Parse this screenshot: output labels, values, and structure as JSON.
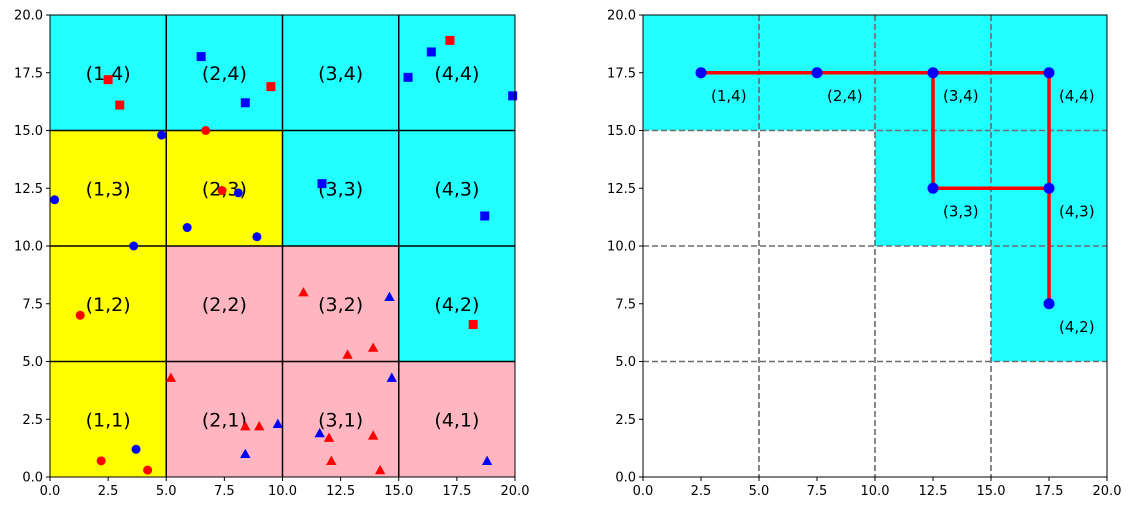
{
  "chart_data": [
    {
      "type": "scatter",
      "xlim": [
        0,
        20
      ],
      "ylim": [
        0,
        20
      ],
      "xticks": [
        "0.0",
        "2.5",
        "5.0",
        "7.5",
        "10.0",
        "12.5",
        "15.0",
        "17.5",
        "20.0"
      ],
      "yticks": [
        "0.0",
        "2.5",
        "5.0",
        "7.5",
        "10.0",
        "12.5",
        "15.0",
        "17.5",
        "20.0"
      ],
      "grid": "solid black lines every 5 units",
      "cell_size": 5,
      "cells": [
        {
          "label": "(1,1)",
          "i": 1,
          "j": 1,
          "fill": "#ffff00"
        },
        {
          "label": "(2,1)",
          "i": 2,
          "j": 1,
          "fill": "#ffb6c1"
        },
        {
          "label": "(3,1)",
          "i": 3,
          "j": 1,
          "fill": "#ffb6c1"
        },
        {
          "label": "(4,1)",
          "i": 4,
          "j": 1,
          "fill": "#ffb6c1"
        },
        {
          "label": "(1,2)",
          "i": 1,
          "j": 2,
          "fill": "#ffff00"
        },
        {
          "label": "(2,2)",
          "i": 2,
          "j": 2,
          "fill": "#ffb6c1"
        },
        {
          "label": "(3,2)",
          "i": 3,
          "j": 2,
          "fill": "#ffb6c1"
        },
        {
          "label": "(4,2)",
          "i": 4,
          "j": 2,
          "fill": "#22ffff"
        },
        {
          "label": "(1,3)",
          "i": 1,
          "j": 3,
          "fill": "#ffff00"
        },
        {
          "label": "(2,3)",
          "i": 2,
          "j": 3,
          "fill": "#ffff00"
        },
        {
          "label": "(3,3)",
          "i": 3,
          "j": 3,
          "fill": "#22ffff"
        },
        {
          "label": "(4,3)",
          "i": 4,
          "j": 3,
          "fill": "#22ffff"
        },
        {
          "label": "(1,4)",
          "i": 1,
          "j": 4,
          "fill": "#22ffff"
        },
        {
          "label": "(2,4)",
          "i": 2,
          "j": 4,
          "fill": "#22ffff"
        },
        {
          "label": "(3,4)",
          "i": 3,
          "j": 4,
          "fill": "#22ffff"
        },
        {
          "label": "(4,4)",
          "i": 4,
          "j": 4,
          "fill": "#22ffff"
        }
      ],
      "series": [
        {
          "marker": "circle",
          "color": "#ff0000",
          "points": [
            [
              2.2,
              0.7
            ],
            [
              4.2,
              0.3
            ],
            [
              1.3,
              7.0
            ],
            [
              6.7,
              15.0
            ],
            [
              7.4,
              12.4
            ]
          ]
        },
        {
          "marker": "circle",
          "color": "#0000ff",
          "points": [
            [
              3.7,
              1.2
            ],
            [
              0.2,
              12.0
            ],
            [
              3.6,
              10.0
            ],
            [
              4.8,
              14.8
            ],
            [
              5.9,
              10.8
            ],
            [
              8.1,
              12.3
            ],
            [
              8.9,
              10.4
            ]
          ]
        },
        {
          "marker": "square",
          "color": "#ff0000",
          "points": [
            [
              2.5,
              17.2
            ],
            [
              3.0,
              16.1
            ],
            [
              9.5,
              16.9
            ],
            [
              17.2,
              18.9
            ],
            [
              18.2,
              6.6
            ]
          ]
        },
        {
          "marker": "square",
          "color": "#0000ff",
          "points": [
            [
              6.5,
              18.2
            ],
            [
              8.4,
              16.2
            ],
            [
              11.7,
              12.7
            ],
            [
              15.4,
              17.3
            ],
            [
              16.4,
              18.4
            ],
            [
              18.7,
              11.3
            ],
            [
              19.9,
              16.5
            ]
          ]
        },
        {
          "marker": "triangle",
          "color": "#ff0000",
          "points": [
            [
              5.2,
              4.3
            ],
            [
              8.4,
              2.2
            ],
            [
              9.0,
              2.2
            ],
            [
              10.9,
              8.0
            ],
            [
              12.0,
              1.7
            ],
            [
              12.1,
              0.7
            ],
            [
              12.8,
              5.3
            ],
            [
              13.9,
              5.6
            ],
            [
              13.9,
              1.8
            ],
            [
              14.2,
              0.3
            ]
          ]
        },
        {
          "marker": "triangle",
          "color": "#0000ff",
          "points": [
            [
              8.4,
              1.0
            ],
            [
              9.8,
              2.3
            ],
            [
              11.6,
              1.9
            ],
            [
              14.6,
              7.8
            ],
            [
              14.7,
              4.3
            ],
            [
              18.8,
              0.7
            ]
          ]
        }
      ]
    },
    {
      "type": "line",
      "xlim": [
        0,
        20
      ],
      "ylim": [
        0,
        20
      ],
      "xticks": [
        "0.0",
        "2.5",
        "5.0",
        "7.5",
        "10.0",
        "12.5",
        "15.0",
        "17.5",
        "20.0"
      ],
      "yticks": [
        "0.0",
        "2.5",
        "5.0",
        "7.5",
        "10.0",
        "12.5",
        "15.0",
        "17.5",
        "20.0"
      ],
      "grid": "dashed gray lines every 5 units",
      "highlight_color": "#22ffff",
      "highlighted_cells": [
        [
          1,
          4
        ],
        [
          2,
          4
        ],
        [
          3,
          4
        ],
        [
          4,
          4
        ],
        [
          3,
          3
        ],
        [
          4,
          3
        ],
        [
          4,
          2
        ]
      ],
      "path_color": "#ff0000",
      "node_color": "#0000ff",
      "path": [
        [
          2.5,
          17.5
        ],
        [
          7.5,
          17.5
        ],
        [
          12.5,
          17.5
        ],
        [
          12.5,
          12.5
        ],
        [
          17.5,
          12.5
        ],
        [
          17.5,
          17.5
        ],
        [
          12.5,
          17.5
        ],
        [
          17.5,
          17.5
        ],
        [
          17.5,
          12.5
        ],
        [
          17.5,
          7.5
        ]
      ],
      "nodes": [
        {
          "label": "(1,4)",
          "x": 2.5,
          "y": 17.5
        },
        {
          "label": "(2,4)",
          "x": 7.5,
          "y": 17.5
        },
        {
          "label": "(3,4)",
          "x": 12.5,
          "y": 17.5
        },
        {
          "label": "(4,4)",
          "x": 17.5,
          "y": 17.5
        },
        {
          "label": "(3,3)",
          "x": 12.5,
          "y": 12.5
        },
        {
          "label": "(4,3)",
          "x": 17.5,
          "y": 12.5
        },
        {
          "label": "(4,2)",
          "x": 17.5,
          "y": 7.5
        }
      ]
    }
  ]
}
